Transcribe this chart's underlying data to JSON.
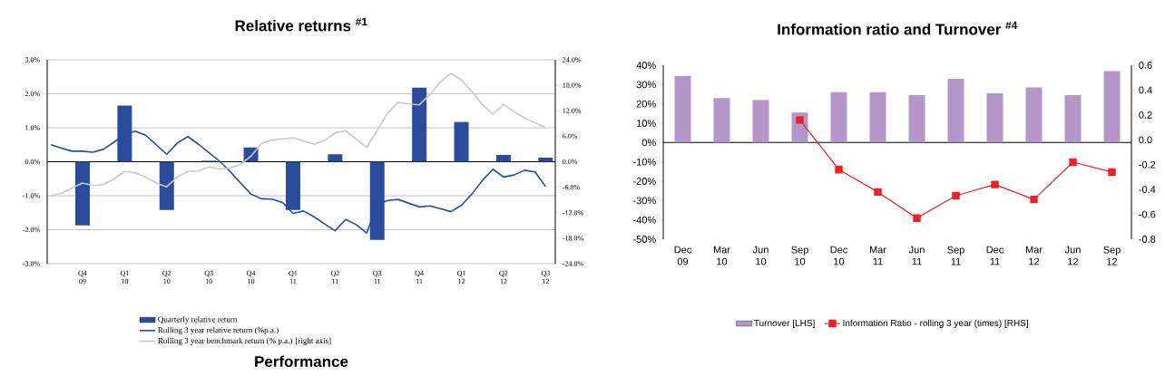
{
  "chart_data": [
    {
      "type": "bar",
      "title": "Relative returns $^{#1}$",
      "categories": [
        null,
        null,
        null,
        "Q4 09",
        null,
        null,
        null,
        "Q1 10",
        null,
        null,
        null,
        "Q2 10",
        null,
        null,
        null,
        "Q3 10",
        null,
        null,
        null,
        "Q4 10",
        null,
        null,
        null,
        "Q1 11",
        null,
        null,
        null,
        "Q2 11",
        null,
        null,
        null,
        "Q3 11",
        null,
        null,
        null,
        "Q4 11",
        null,
        null,
        null,
        "Q1 12",
        null,
        null,
        null,
        "Q2 12",
        null,
        null,
        null,
        "Q3 12"
      ],
      "series": [
        {
          "name": "Quarterly relative return",
          "color": "#2b4b9b",
          "values": [
            null,
            null,
            null,
            -1.87,
            null,
            null,
            null,
            1.65,
            null,
            null,
            null,
            -1.42,
            null,
            null,
            null,
            0.03,
            null,
            null,
            null,
            0.42,
            null,
            null,
            null,
            -1.42,
            null,
            null,
            null,
            0.22,
            null,
            null,
            null,
            -2.3,
            null,
            null,
            null,
            2.18,
            null,
            null,
            null,
            1.17,
            null,
            null,
            null,
            0.2,
            null,
            null,
            null,
            0.12
          ]
        },
        {
          "name": "Rolling 3 year relative return (%p.a.)",
          "type": "line",
          "color": "#1f4fa0",
          "values": [
            0.5,
            0.4,
            0.31,
            0.31,
            0.28,
            0.37,
            0.58,
            0.8,
            0.9,
            0.78,
            0.5,
            0.22,
            0.55,
            0.74,
            0.52,
            0.27,
            0.02,
            -0.28,
            -0.62,
            -0.95,
            -1.09,
            -1.1,
            -1.2,
            -1.52,
            -1.45,
            -1.62,
            -1.83,
            -2.03,
            -1.7,
            -1.85,
            -2.1,
            -1.25,
            -1.14,
            -1.11,
            -1.22,
            -1.33,
            -1.3,
            -1.38,
            -1.47,
            -1.28,
            -0.95,
            -0.55,
            -0.22,
            -0.45,
            -0.39,
            -0.25,
            -0.3,
            -0.73
          ]
        },
        {
          "name": "Rolling 3 year benchmark return (% p.a.) [right axis]",
          "type": "line",
          "axis": "y2",
          "color": "#c8c8c8",
          "values": [
            -8.0,
            -7.4,
            -6.2,
            -5.0,
            -5.6,
            -5.4,
            -4.0,
            -2.3,
            -2.6,
            -3.6,
            -5.0,
            -5.9,
            -3.6,
            -2.3,
            -2.2,
            -1.2,
            -1.7,
            -1.5,
            -0.6,
            1.3,
            4.3,
            5.1,
            5.4,
            5.6,
            4.9,
            4.1,
            5.0,
            6.8,
            7.3,
            5.3,
            3.4,
            7.4,
            11.5,
            14.0,
            13.6,
            13.4,
            15.8,
            18.8,
            20.8,
            19.3,
            16.5,
            13.4,
            11.2,
            13.5,
            11.8,
            10.3,
            9.2,
            8.0
          ]
        }
      ],
      "ylim": [
        -3,
        3
      ],
      "yticks": [
        {
          "value": -3,
          "label": "-3.0%"
        },
        {
          "value": -2,
          "label": "-2.0%"
        },
        {
          "value": -1,
          "label": "-1.0%"
        },
        {
          "value": 0,
          "label": "0.0%"
        },
        {
          "value": 1,
          "label": "1.0%"
        },
        {
          "value": 2,
          "label": "2.0%"
        },
        {
          "value": 3,
          "label": "3.0%"
        }
      ],
      "y2lim": [
        -24,
        24
      ],
      "y2ticks": [
        {
          "value": -24,
          "label": "-24.0%"
        },
        {
          "value": -18,
          "label": "-18.0%"
        },
        {
          "value": -12,
          "label": "-12.0%"
        },
        {
          "value": -6,
          "label": "-6.0%"
        },
        {
          "value": 0,
          "label": "0.0%"
        },
        {
          "value": 6,
          "label": "6.0%"
        },
        {
          "value": 12,
          "label": "12.0%"
        },
        {
          "value": 18,
          "label": "18.0%"
        },
        {
          "value": 24,
          "label": "24.0%"
        }
      ],
      "grid": "y",
      "legend": "bottom",
      "annotations": [
        "Performance"
      ]
    },
    {
      "type": "bar",
      "title": "Information ratio and Turnover $^{#4}$",
      "categories": [
        "Dec 09",
        "Mar 10",
        "Jun 10",
        "Sep 10",
        "Dec 10",
        "Mar 11",
        "Jun 11",
        "Sep 11",
        "Dec 11",
        "Mar 12",
        "Jun 12",
        "Sep 12"
      ],
      "series": [
        {
          "name": "Turnover [LHS]",
          "color": "#b496c8",
          "values": [
            34.5,
            23,
            22,
            15.5,
            26,
            26,
            24.5,
            33,
            25.5,
            28.5,
            24.5,
            37
          ]
        },
        {
          "name": "Information Ratio - rolling 3 year (times) [RHS]",
          "type": "line",
          "axis": "y2",
          "color": "#ee2024",
          "marker": "square",
          "values": [
            null,
            null,
            null,
            0.16,
            -0.24,
            -0.42,
            -0.63,
            -0.45,
            -0.36,
            -0.48,
            -0.18,
            -0.26
          ]
        }
      ],
      "ylim": [
        -50,
        40
      ],
      "yticks": [
        {
          "value": -50,
          "label": "-50%"
        },
        {
          "value": -40,
          "label": "-40%"
        },
        {
          "value": -30,
          "label": "-30%"
        },
        {
          "value": -20,
          "label": "-20%"
        },
        {
          "value": -10,
          "label": "-10%"
        },
        {
          "value": 0,
          "label": "0%"
        },
        {
          "value": 10,
          "label": "10%"
        },
        {
          "value": 20,
          "label": "20%"
        },
        {
          "value": 30,
          "label": "30%"
        },
        {
          "value": 40,
          "label": "40%"
        }
      ],
      "y2lim": [
        -0.8,
        0.6
      ],
      "y2ticks": [
        {
          "value": -0.8,
          "label": "-0.8"
        },
        {
          "value": -0.6,
          "label": "-0.6"
        },
        {
          "value": -0.4,
          "label": "-0.4"
        },
        {
          "value": -0.2,
          "label": "-0.2"
        },
        {
          "value": 0,
          "label": "0.0"
        },
        {
          "value": 0.2,
          "label": "0.2"
        },
        {
          "value": 0.4,
          "label": "0.4"
        },
        {
          "value": 0.6,
          "label": "0.6"
        }
      ],
      "legend": "bottom"
    }
  ]
}
